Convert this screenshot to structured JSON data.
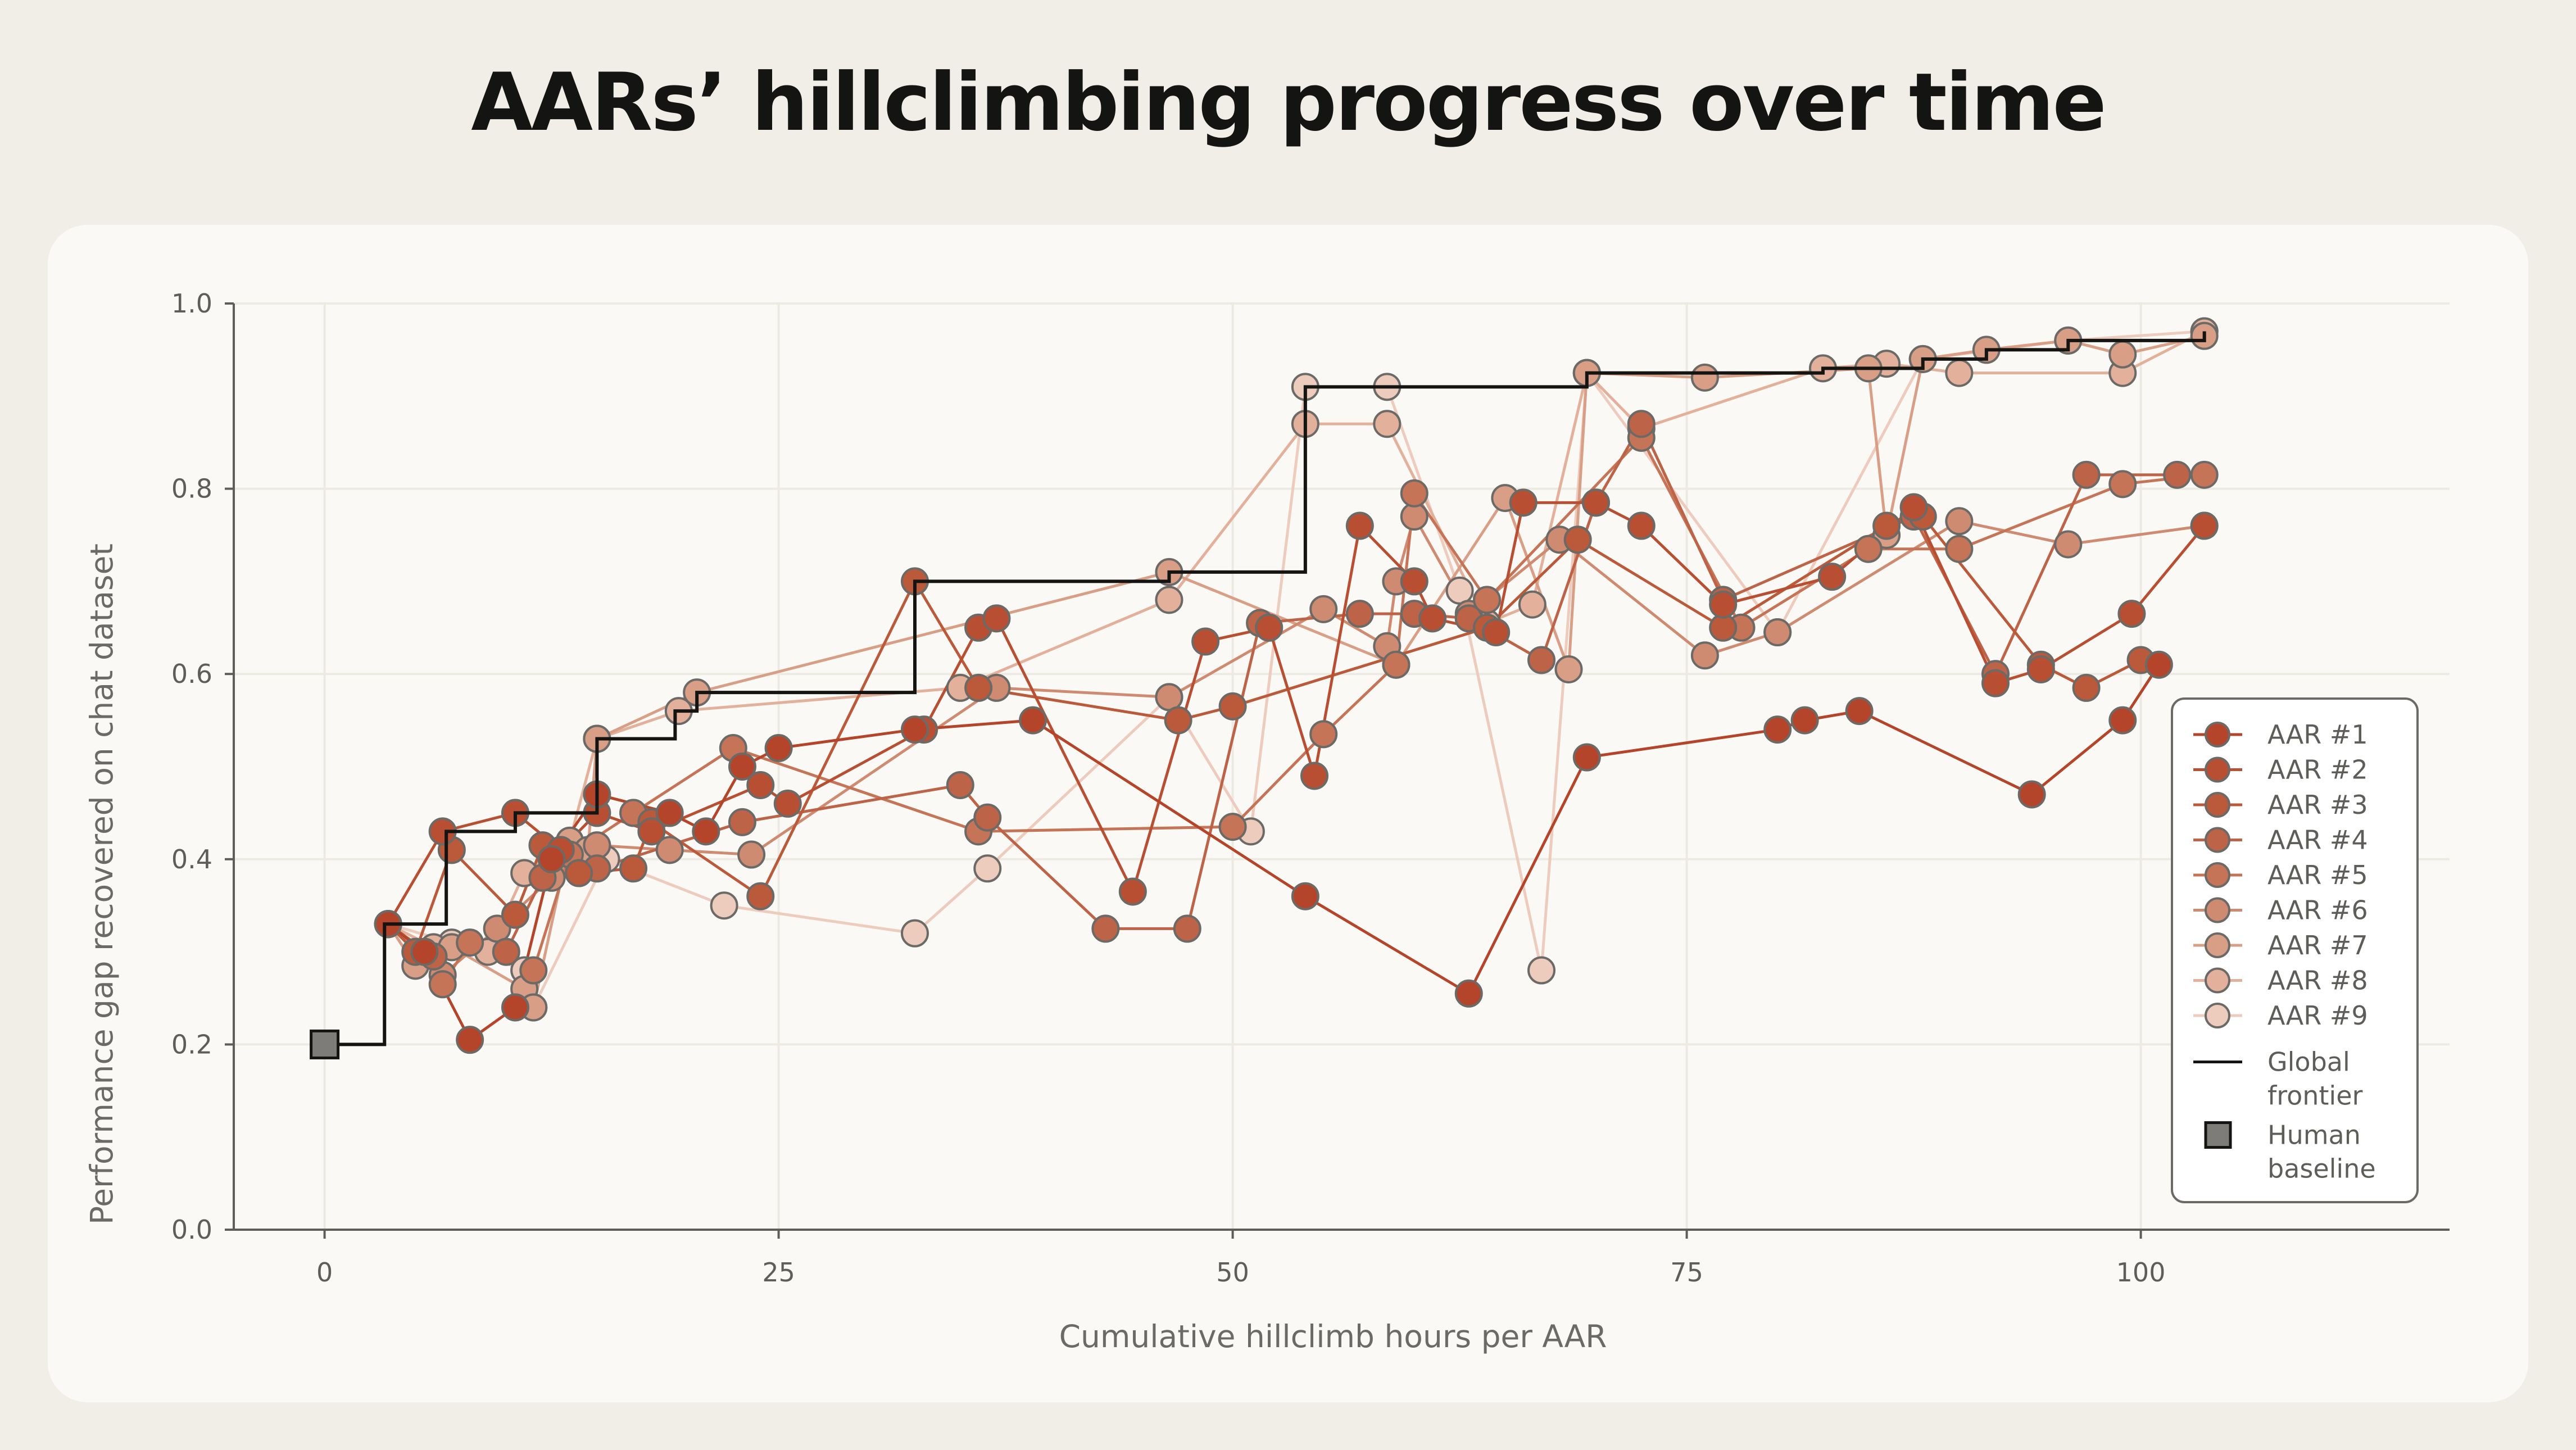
{
  "title": "AARs’ hillclimbing progress over time",
  "chart_data": {
    "type": "line",
    "xlabel": "Cumulative hillclimb hours per AAR",
    "ylabel": "Performance gap recovered on chat dataset",
    "xlim": [
      -5,
      117
    ],
    "ylim": [
      0.0,
      1.0
    ],
    "xticks": [
      0,
      25,
      50,
      75,
      100
    ],
    "yticks": [
      0.0,
      0.2,
      0.4,
      0.6,
      0.8,
      1.0
    ],
    "xtick_labels": [
      "0",
      "25",
      "50",
      "75",
      "100"
    ],
    "ytick_labels": [
      "0.0",
      "0.2",
      "0.4",
      "0.6",
      "0.8",
      "1.0"
    ],
    "grid": true,
    "legend_position": "right",
    "series": [
      {
        "name": "AAR #1",
        "color": "#b5452a",
        "points": [
          [
            3.5,
            0.33
          ],
          [
            5.5,
            0.3
          ],
          [
            8,
            0.205
          ],
          [
            10.5,
            0.24
          ],
          [
            12.5,
            0.4
          ],
          [
            15,
            0.47
          ],
          [
            19,
            0.45
          ],
          [
            21,
            0.43
          ],
          [
            23,
            0.5
          ],
          [
            25,
            0.52
          ],
          [
            32.5,
            0.54
          ],
          [
            39,
            0.55
          ],
          [
            54,
            0.36
          ],
          [
            63,
            0.255
          ],
          [
            69.5,
            0.51
          ],
          [
            80,
            0.54
          ],
          [
            81.5,
            0.55
          ],
          [
            84.5,
            0.56
          ],
          [
            94,
            0.47
          ],
          [
            99,
            0.55
          ],
          [
            101,
            0.61
          ]
        ]
      },
      {
        "name": "AAR #2",
        "color": "#b84f32",
        "points": [
          [
            3.5,
            0.33
          ],
          [
            6.5,
            0.43
          ],
          [
            10.5,
            0.45
          ],
          [
            13,
            0.41
          ],
          [
            15,
            0.45
          ],
          [
            18,
            0.43
          ],
          [
            24,
            0.48
          ],
          [
            25.5,
            0.46
          ],
          [
            33,
            0.54
          ],
          [
            36,
            0.65
          ],
          [
            37,
            0.66
          ],
          [
            44.5,
            0.365
          ],
          [
            48.5,
            0.635
          ],
          [
            52,
            0.65
          ],
          [
            54.5,
            0.49
          ],
          [
            57,
            0.76
          ],
          [
            60,
            0.7
          ],
          [
            61,
            0.66
          ],
          [
            64.5,
            0.645
          ],
          [
            66,
            0.785
          ],
          [
            70,
            0.785
          ],
          [
            72.5,
            0.76
          ],
          [
            77,
            0.675
          ],
          [
            83,
            0.705
          ],
          [
            87.5,
            0.78
          ],
          [
            92,
            0.59
          ],
          [
            94.5,
            0.605
          ],
          [
            99.5,
            0.665
          ],
          [
            103.5,
            0.76
          ]
        ]
      },
      {
        "name": "AAR #3",
        "color": "#bb5a3b",
        "points": [
          [
            3.5,
            0.33
          ],
          [
            5,
            0.3
          ],
          [
            7,
            0.41
          ],
          [
            10.5,
            0.34
          ],
          [
            12,
            0.415
          ],
          [
            14,
            0.385
          ],
          [
            17,
            0.39
          ],
          [
            18,
            0.44
          ],
          [
            24,
            0.36
          ],
          [
            32.5,
            0.7
          ],
          [
            36,
            0.585
          ],
          [
            47,
            0.55
          ],
          [
            50,
            0.565
          ],
          [
            64,
            0.65
          ],
          [
            69,
            0.745
          ],
          [
            77,
            0.65
          ],
          [
            86,
            0.76
          ],
          [
            88,
            0.77
          ],
          [
            94.5,
            0.61
          ],
          [
            97,
            0.585
          ],
          [
            100,
            0.615
          ]
        ]
      },
      {
        "name": "AAR #4",
        "color": "#bd6347",
        "points": [
          [
            3.5,
            0.33
          ],
          [
            6,
            0.295
          ],
          [
            10,
            0.3
          ],
          [
            12,
            0.38
          ],
          [
            15,
            0.39
          ],
          [
            23,
            0.44
          ],
          [
            35,
            0.48
          ],
          [
            36.5,
            0.445
          ],
          [
            43,
            0.325
          ],
          [
            47.5,
            0.325
          ],
          [
            51.5,
            0.655
          ],
          [
            57,
            0.665
          ],
          [
            60,
            0.665
          ],
          [
            63,
            0.66
          ],
          [
            67,
            0.615
          ],
          [
            70,
            0.785
          ],
          [
            72.5,
            0.87
          ],
          [
            77,
            0.68
          ],
          [
            87.5,
            0.77
          ],
          [
            92,
            0.6
          ],
          [
            97,
            0.815
          ],
          [
            102,
            0.815
          ]
        ]
      },
      {
        "name": "AAR #5",
        "color": "#c57457",
        "points": [
          [
            3.5,
            0.33
          ],
          [
            5.5,
            0.3
          ],
          [
            6.5,
            0.265
          ],
          [
            8,
            0.31
          ],
          [
            11.5,
            0.28
          ],
          [
            13.5,
            0.405
          ],
          [
            17,
            0.45
          ],
          [
            22.5,
            0.52
          ],
          [
            36,
            0.43
          ],
          [
            50,
            0.435
          ],
          [
            55,
            0.535
          ],
          [
            59,
            0.61
          ],
          [
            60,
            0.795
          ],
          [
            64,
            0.68
          ],
          [
            72.5,
            0.855
          ],
          [
            78,
            0.65
          ],
          [
            85,
            0.735
          ],
          [
            90,
            0.735
          ],
          [
            99,
            0.805
          ],
          [
            103.5,
            0.815
          ]
        ]
      },
      {
        "name": "AAR #6",
        "color": "#cf8b71",
        "points": [
          [
            3.5,
            0.33
          ],
          [
            6.5,
            0.275
          ],
          [
            9.5,
            0.325
          ],
          [
            12.5,
            0.38
          ],
          [
            15,
            0.415
          ],
          [
            19,
            0.41
          ],
          [
            23.5,
            0.405
          ],
          [
            37,
            0.585
          ],
          [
            46.5,
            0.575
          ],
          [
            55,
            0.67
          ],
          [
            58.5,
            0.63
          ],
          [
            59,
            0.7
          ],
          [
            60,
            0.77
          ],
          [
            63,
            0.665
          ],
          [
            68,
            0.745
          ],
          [
            76,
            0.62
          ],
          [
            80,
            0.645
          ],
          [
            90,
            0.765
          ],
          [
            96,
            0.74
          ],
          [
            103.5,
            0.76
          ]
        ]
      },
      {
        "name": "AAR #7",
        "color": "#d89e86",
        "points": [
          [
            3.5,
            0.33
          ],
          [
            5,
            0.285
          ],
          [
            7,
            0.305
          ],
          [
            11,
            0.26
          ],
          [
            11.5,
            0.24
          ],
          [
            13.5,
            0.42
          ],
          [
            14.5,
            0.41
          ],
          [
            15,
            0.53
          ],
          [
            20.5,
            0.58
          ],
          [
            46.5,
            0.71
          ],
          [
            59,
            0.61
          ],
          [
            65,
            0.79
          ],
          [
            68.5,
            0.605
          ],
          [
            69.5,
            0.925
          ],
          [
            76,
            0.92
          ],
          [
            85,
            0.93
          ],
          [
            86,
            0.75
          ],
          [
            88,
            0.94
          ],
          [
            91.5,
            0.95
          ],
          [
            96,
            0.96
          ],
          [
            99,
            0.945
          ],
          [
            103.5,
            0.965
          ]
        ]
      },
      {
        "name": "AAR #8",
        "color": "#e2b09b",
        "points": [
          [
            3.5,
            0.33
          ],
          [
            6,
            0.305
          ],
          [
            9,
            0.3
          ],
          [
            11,
            0.385
          ],
          [
            13.5,
            0.42
          ],
          [
            15,
            0.53
          ],
          [
            19.5,
            0.56
          ],
          [
            35,
            0.585
          ],
          [
            46.5,
            0.68
          ],
          [
            54,
            0.87
          ],
          [
            58.5,
            0.87
          ],
          [
            64,
            0.655
          ],
          [
            66.5,
            0.675
          ],
          [
            69.5,
            0.925
          ],
          [
            72.5,
            0.865
          ],
          [
            82.5,
            0.93
          ],
          [
            86,
            0.935
          ],
          [
            90,
            0.925
          ],
          [
            99,
            0.925
          ],
          [
            103.5,
            0.97
          ]
        ]
      },
      {
        "name": "AAR #9",
        "color": "#edcbbd",
        "points": [
          [
            3.5,
            0.33
          ],
          [
            7,
            0.31
          ],
          [
            11,
            0.28
          ],
          [
            11.5,
            0.24
          ],
          [
            15.5,
            0.4
          ],
          [
            22,
            0.35
          ],
          [
            32.5,
            0.32
          ],
          [
            36.5,
            0.39
          ],
          [
            46.5,
            0.575
          ],
          [
            51,
            0.43
          ],
          [
            54,
            0.91
          ],
          [
            58.5,
            0.91
          ],
          [
            62.5,
            0.69
          ],
          [
            67,
            0.28
          ],
          [
            69.5,
            0.925
          ],
          [
            80,
            0.645
          ],
          [
            88,
            0.94
          ],
          [
            96,
            0.96
          ],
          [
            103.5,
            0.97
          ]
        ]
      }
    ],
    "global_frontier": {
      "name": "Global frontier",
      "color": "#141413",
      "points": [
        [
          0,
          0.2
        ],
        [
          3.3,
          0.2
        ],
        [
          3.3,
          0.33
        ],
        [
          6.7,
          0.33
        ],
        [
          6.7,
          0.43
        ],
        [
          10.5,
          0.43
        ],
        [
          10.5,
          0.45
        ],
        [
          15,
          0.45
        ],
        [
          15,
          0.53
        ],
        [
          19.3,
          0.53
        ],
        [
          19.3,
          0.56
        ],
        [
          20.5,
          0.56
        ],
        [
          20.5,
          0.58
        ],
        [
          32.5,
          0.58
        ],
        [
          32.5,
          0.7
        ],
        [
          46.5,
          0.7
        ],
        [
          46.5,
          0.71
        ],
        [
          54,
          0.71
        ],
        [
          54,
          0.91
        ],
        [
          69.5,
          0.91
        ],
        [
          69.5,
          0.925
        ],
        [
          82.5,
          0.925
        ],
        [
          82.5,
          0.93
        ],
        [
          88,
          0.93
        ],
        [
          88,
          0.94
        ],
        [
          91.5,
          0.94
        ],
        [
          91.5,
          0.95
        ],
        [
          96,
          0.95
        ],
        [
          96,
          0.96
        ],
        [
          103.5,
          0.96
        ],
        [
          103.5,
          0.97
        ]
      ]
    },
    "human_baseline": {
      "name": "Human baseline",
      "color": "#7d7c78",
      "x": 0,
      "y": 0.2
    }
  },
  "legend": {
    "items": [
      "AAR #1",
      "AAR #2",
      "AAR #3",
      "AAR #4",
      "AAR #5",
      "AAR #6",
      "AAR #7",
      "AAR #8",
      "AAR #9"
    ],
    "frontier_label": [
      "Global",
      "frontier"
    ],
    "baseline_label": [
      "Human",
      "baseline"
    ]
  },
  "colors": {
    "background": "#f0eee6",
    "card": "#faf9f5",
    "axis": "#5e5d59",
    "grid": "#eceae2"
  }
}
